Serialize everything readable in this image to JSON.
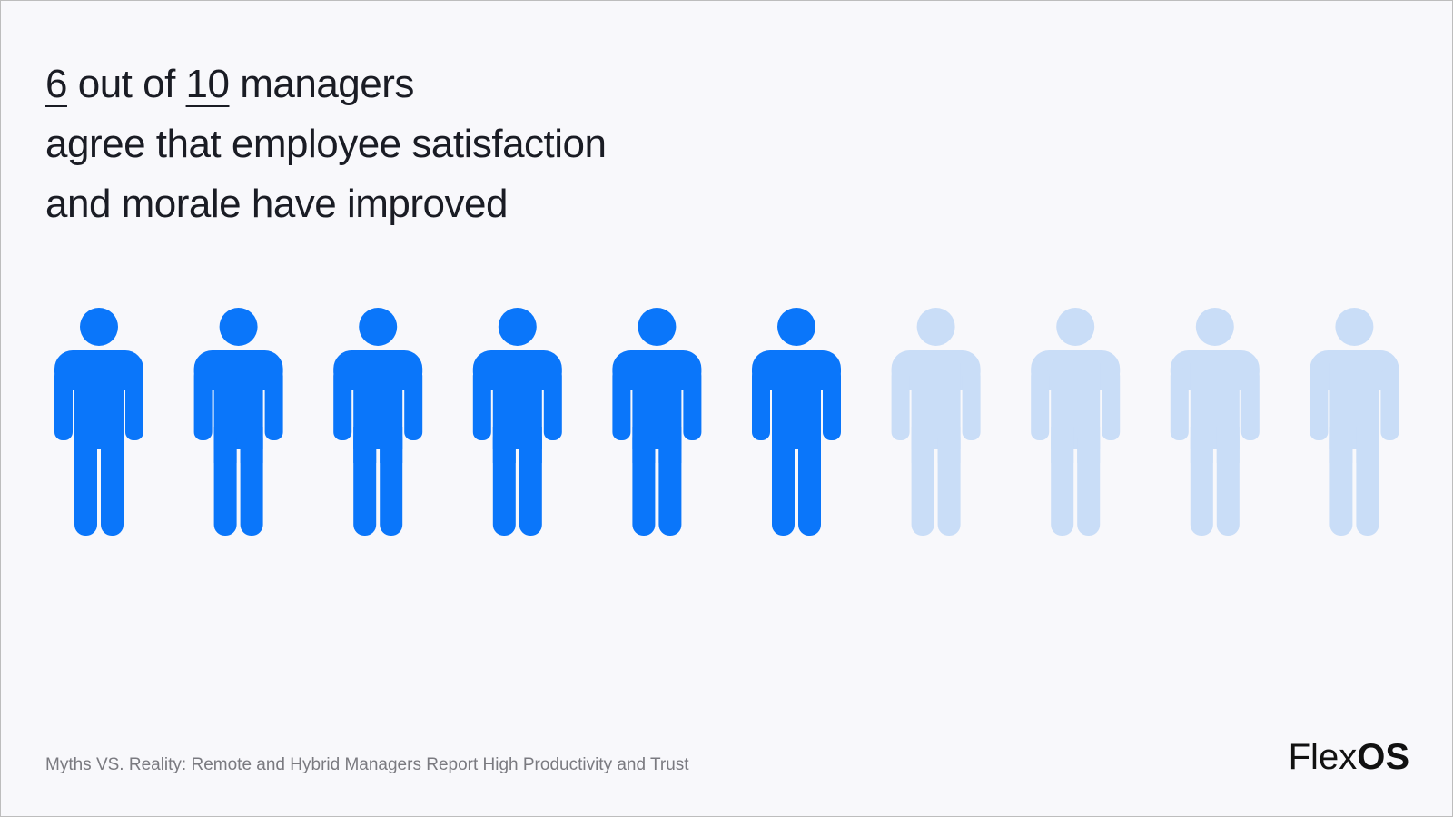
{
  "chart_data": {
    "type": "pictogram",
    "value": 6,
    "total": 10,
    "title": [
      "out of",
      "managers",
      "agree that employee satisfaction",
      "and morale have improved"
    ],
    "color": "#0a76fa",
    "empty_color": "#c9ddf7",
    "source": "Myths VS. Reality: Remote and Hybrid Managers Report High Productivity and Trust",
    "logo": [
      "Flex",
      "OS"
    ]
  }
}
